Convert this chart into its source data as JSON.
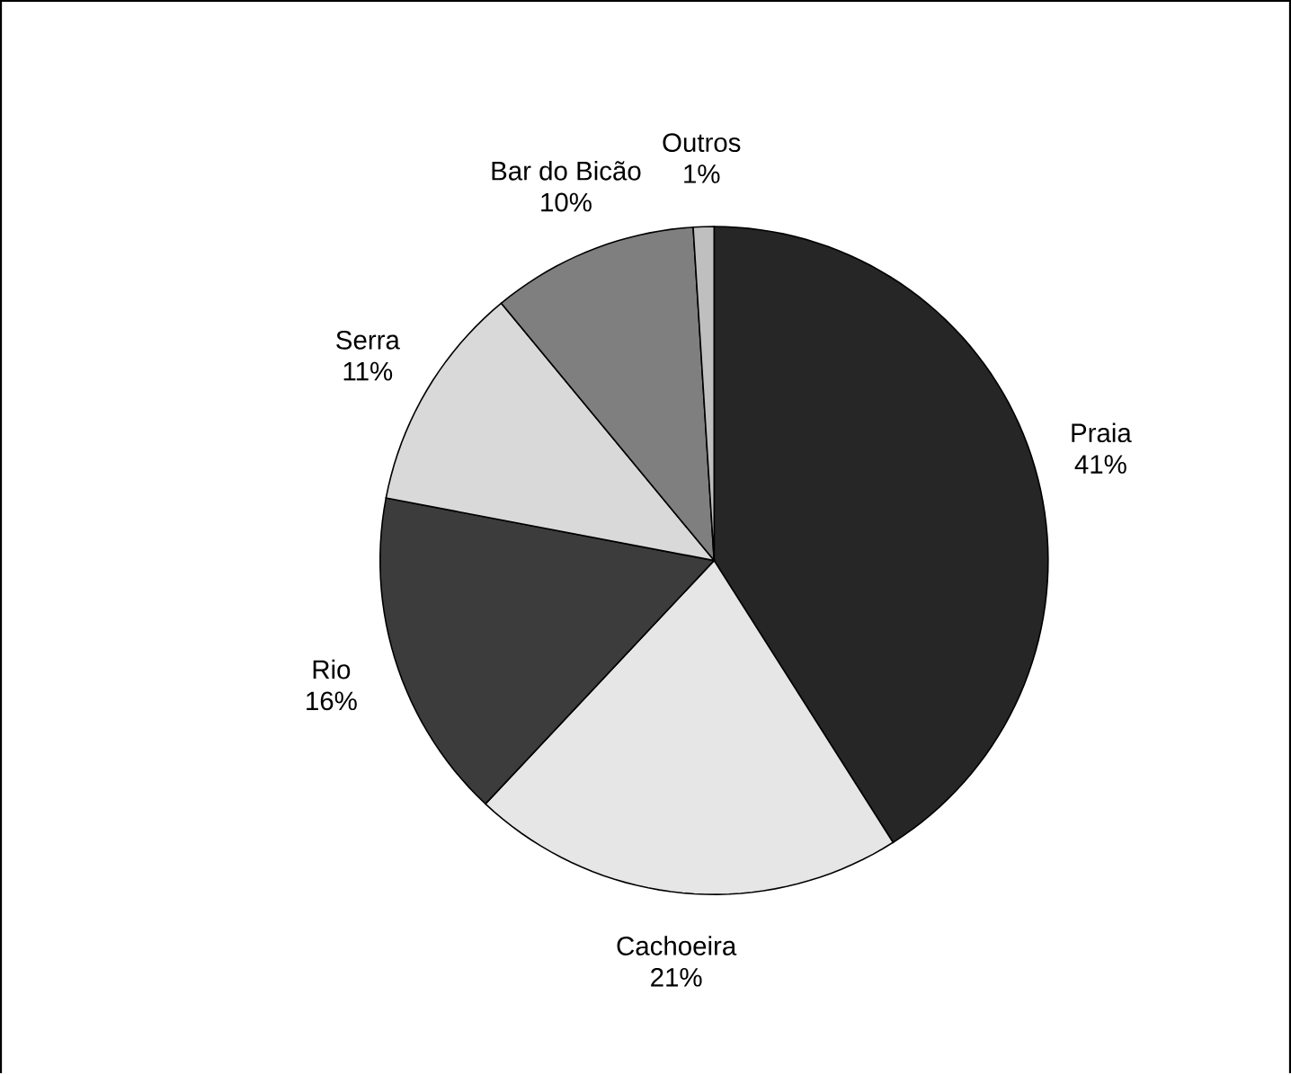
{
  "chart_data": {
    "type": "pie",
    "categories": [
      "Praia",
      "Cachoeira",
      "Rio",
      "Serra",
      "Bar do Bicão",
      "Outros"
    ],
    "values": [
      41,
      21,
      16,
      11,
      10,
      1
    ],
    "value_labels": [
      "41%",
      "21%",
      "16%",
      "11%",
      "10%",
      "1%"
    ],
    "colors": [
      "#262626",
      "#e6e6e6",
      "#3c3c3c",
      "#d9d9d9",
      "#7f7f7f",
      "#bfbfbf"
    ]
  }
}
